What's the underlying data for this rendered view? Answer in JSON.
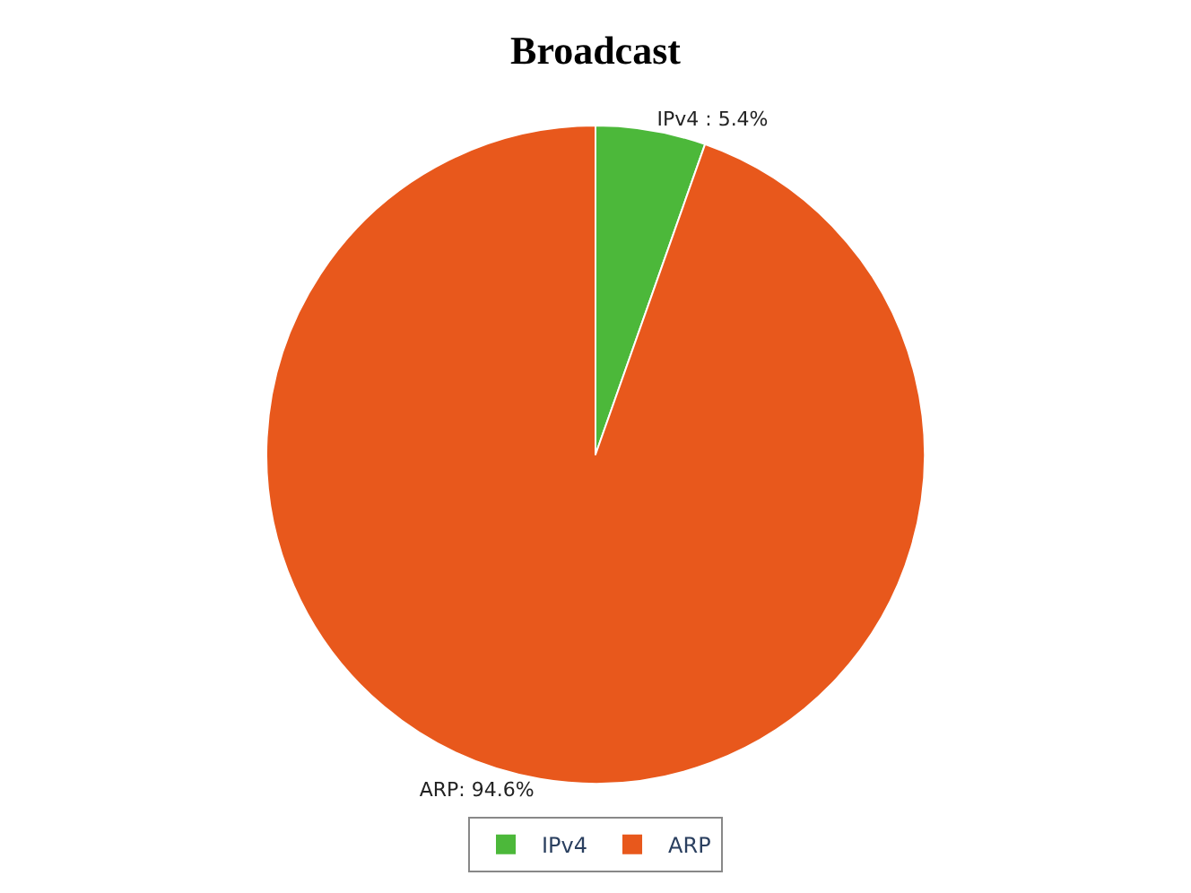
{
  "chart_data": {
    "type": "pie",
    "title": "Broadcast",
    "categories": [
      "IPv4",
      "ARP"
    ],
    "values": [
      5.4,
      94.6
    ],
    "colors": [
      "#4cb83a",
      "#e8581c"
    ],
    "value_labels": [
      "IPv4 : 5.4%",
      "ARP: 94.6%"
    ],
    "legend": "bottom"
  }
}
